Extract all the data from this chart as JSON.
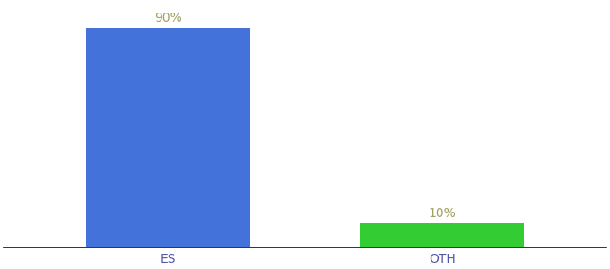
{
  "categories": [
    "ES",
    "OTH"
  ],
  "values": [
    90,
    10
  ],
  "bar_colors": [
    "#4472db",
    "#33cc33"
  ],
  "label_texts": [
    "90%",
    "10%"
  ],
  "background_color": "#ffffff",
  "ylim": [
    0,
    100
  ],
  "bar_width": 0.6,
  "label_fontsize": 10,
  "tick_fontsize": 10,
  "label_color": "#a0a060",
  "x_positions": [
    0,
    1
  ]
}
